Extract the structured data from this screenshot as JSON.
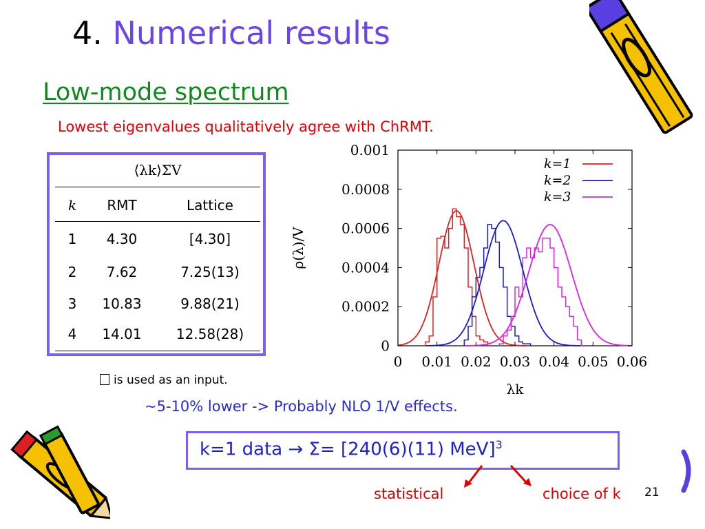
{
  "slide": {
    "title_number": "4.",
    "title_text": "Numerical results",
    "subtitle": "Low-mode spectrum",
    "lead": "Lowest  eigenvalues qualitatively agree with ChRMT.",
    "footnote": "is used as an input.",
    "nlo_note": "~5-10% lower  ->  Probably NLO 1/V effects.",
    "sigma_result": "k=1 data   →  Σ= [240(6)(11) MeV]",
    "sigma_exponent": "3",
    "label_statistical": "statistical",
    "label_choice": "choice of k",
    "page_number": "21"
  },
  "table": {
    "header": "⟨λk⟩ΣV",
    "columns": [
      "k",
      "RMT",
      "Lattice"
    ],
    "rows": [
      [
        "1",
        "4.30",
        "[4.30]"
      ],
      [
        "2",
        "7.62",
        "7.25(13)"
      ],
      [
        "3",
        "10.83",
        "9.88(21)"
      ],
      [
        "4",
        "14.01",
        "12.58(28)"
      ]
    ]
  },
  "colors": {
    "title_accent": "#6b45e8",
    "subtitle": "#108a1e",
    "red": "#e00000",
    "blue": "#2b2bd0",
    "box_border": "#7b5ff0",
    "k1": "#e02020",
    "k2": "#1a1ad0",
    "k3": "#e020e0"
  },
  "chart_data": {
    "type": "line",
    "xlabel": "λk",
    "ylabel": "ρ(λ)/V",
    "xlim": [
      0,
      0.06
    ],
    "ylim": [
      0,
      0.001
    ],
    "xticks": [
      "0",
      "0.01",
      "0.02",
      "0.03",
      "0.04",
      "0.05",
      "0.06"
    ],
    "yticks": [
      "0",
      "0.0002",
      "0.0004",
      "0.0006",
      "0.0008",
      "0.001"
    ],
    "legend_position": "top-right",
    "series": [
      {
        "name": "k=1",
        "color": "#e02020",
        "peak_x": 0.015,
        "peak_y": 0.00069,
        "width": 0.0045
      },
      {
        "name": "k=2",
        "color": "#1a1ad0",
        "peak_x": 0.027,
        "peak_y": 0.00064,
        "width": 0.005
      },
      {
        "name": "k=3",
        "color": "#e020e0",
        "peak_x": 0.039,
        "peak_y": 0.00062,
        "width": 0.0055
      }
    ],
    "histograms": [
      {
        "name": "k=1",
        "bin_width": 0.001,
        "x_start": 0.007,
        "values": [
          2e-05,
          5e-05,
          0.00025,
          0.00055,
          0.00056,
          0.0005,
          0.0006,
          0.0007,
          0.00066,
          0.00062,
          0.0005,
          0.0003,
          0.00015,
          5e-05,
          3e-05,
          2e-05
        ]
      },
      {
        "name": "k=2",
        "bin_width": 0.001,
        "x_start": 0.017,
        "values": [
          3e-05,
          0.0001,
          0.00025,
          0.00035,
          0.0004,
          0.0005,
          0.00062,
          0.0006,
          0.00053,
          0.0004,
          0.0003,
          0.00015,
          0.0001,
          5e-05,
          2e-05,
          1e-05,
          1e-05
        ]
      },
      {
        "name": "k=3",
        "bin_width": 0.001,
        "x_start": 0.026,
        "values": [
          1e-05,
          5e-05,
          8e-05,
          0.00015,
          0.0003,
          0.00025,
          0.00045,
          0.0005,
          0.00045,
          0.0005,
          0.00048,
          0.00055,
          0.00055,
          0.0005,
          0.0004,
          0.0003,
          0.00025,
          0.0002,
          0.00015,
          0.0001,
          3e-05
        ]
      }
    ]
  }
}
